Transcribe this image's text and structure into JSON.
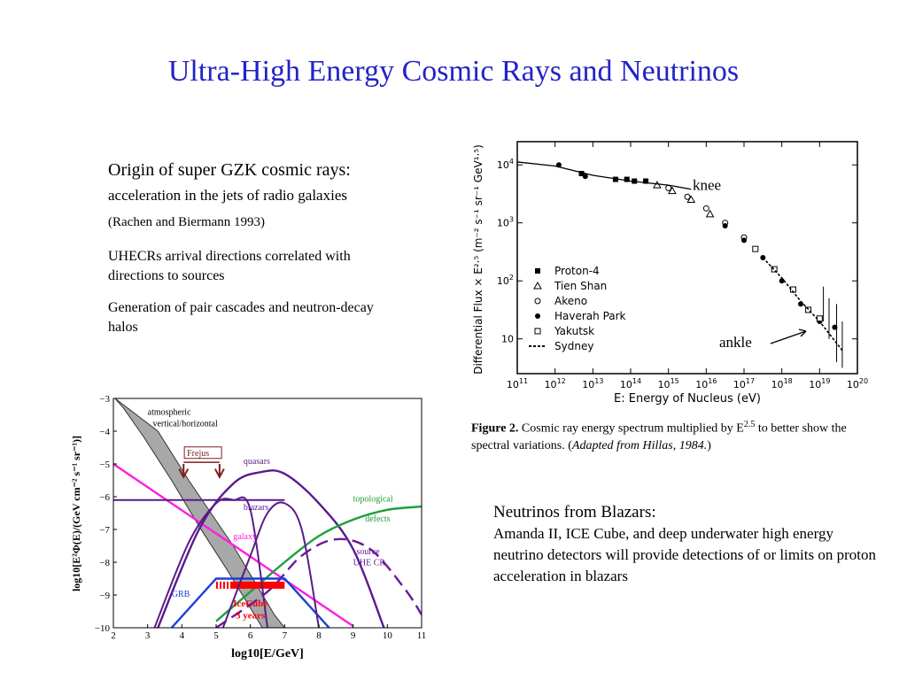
{
  "slide": {
    "title": "Ultra-High Energy Cosmic Rays and Neutrinos",
    "left_text": {
      "p1_lead": "Origin of super GZK cosmic rays:",
      "p1_mid": "acceleration in the jets of radio galaxies",
      "p1_cite": "(Rachen and Biermann 1993)",
      "p2": "UHECRs arrival directions correlated with directions to sources",
      "p3": "Generation of pair cascades and neutron-decay halos"
    },
    "right_text": {
      "heading": "Neutrinos from Blazars:",
      "body": "Amanda II, ICE Cube, and deep underwater high energy neutrino detectors  will provide detections of or limits on proton acceleration in blazars"
    },
    "caption": {
      "label": "Figure 2.",
      "text": "Cosmic ray energy spectrum multiplied by E",
      "exp": "2.5",
      "text2": "to better show the spectral variations. (",
      "cite": "Adapted from Hillas, 1984.",
      "close": ")"
    }
  },
  "chart_data": [
    {
      "type": "scatter",
      "xlabel": "E: Energy of Nucleus (eV)",
      "ylabel": "Differential Flux × E²·⁵ (m⁻² s⁻¹ sr⁻¹ GeV¹·⁵)",
      "xscale": "log",
      "yscale": "log",
      "xlim_log10": [
        11,
        20
      ],
      "ylim_log10": [
        0.4,
        4.4
      ],
      "x_ticks": [
        "10^11",
        "10^12",
        "10^13",
        "10^14",
        "10^15",
        "10^16",
        "10^17",
        "10^18",
        "10^19",
        "10^20"
      ],
      "y_ticks": [
        "10",
        "10^2",
        "10^3",
        "10^4"
      ],
      "annotations": [
        {
          "text": "knee",
          "x_log10": 15.5,
          "y_log10": 3.6
        },
        {
          "text": "ankle",
          "x_log10": 18.9,
          "y_log10": 0.95
        }
      ],
      "legend": [
        "Proton-4",
        "Tien Shan",
        "Akeno",
        "Haverah Park",
        "Yakutsk",
        "Sydney"
      ],
      "legend_position": "left",
      "series": [
        {
          "name": "Proton-4",
          "marker": "filled-square",
          "x_log10": [
            12.7,
            13.6,
            13.9,
            14.1,
            14.4
          ],
          "y_log10": [
            3.85,
            3.75,
            3.75,
            3.72,
            3.72
          ]
        },
        {
          "name": "Tien Shan",
          "marker": "open-triangle",
          "x_log10": [
            14.7,
            15.1,
            15.6,
            16.1
          ],
          "y_log10": [
            3.65,
            3.55,
            3.4,
            3.15
          ]
        },
        {
          "name": "Akeno",
          "marker": "open-circle",
          "x_log10": [
            15.0,
            15.5,
            16.0,
            16.5,
            17.0
          ],
          "y_log10": [
            3.6,
            3.45,
            3.25,
            3.0,
            2.75
          ]
        },
        {
          "name": "Haverah Park",
          "marker": "filled-circle",
          "x_log10": [
            12.1,
            12.8,
            16.5,
            17.0,
            17.5,
            18.0,
            18.5,
            19.0,
            19.4
          ],
          "y_log10": [
            4.0,
            3.8,
            2.95,
            2.7,
            2.4,
            2.0,
            1.6,
            1.3,
            1.2
          ]
        },
        {
          "name": "Yakutsk",
          "marker": "open-square",
          "x_log10": [
            17.3,
            17.8,
            18.3,
            18.7,
            19.0
          ],
          "y_log10": [
            2.55,
            2.2,
            1.85,
            1.5,
            1.35
          ]
        },
        {
          "name": "Sydney",
          "marker": "dashed-line",
          "x_log10": [
            17.5,
            18.0,
            18.5,
            19.0,
            19.6
          ],
          "y_log10": [
            2.4,
            2.05,
            1.65,
            1.3,
            0.8
          ]
        }
      ]
    },
    {
      "type": "line",
      "xlabel": "log10[E/GeV]",
      "ylabel": "log10[E²Φ(E)/(GeV cm⁻² s⁻¹ sr⁻¹)]",
      "xlim": [
        2,
        11
      ],
      "ylim": [
        -10,
        -3
      ],
      "x_ticks": [
        "2",
        "3",
        "4",
        "5",
        "6",
        "7",
        "8",
        "9",
        "10",
        "11"
      ],
      "y_ticks": [
        "−3",
        "−4",
        "−5",
        "−6",
        "−7",
        "−8",
        "−9",
        "−10"
      ],
      "labels": {
        "atmo": "atmospheric",
        "atmo2": "vertical/horizontal",
        "frejus": "Frejus",
        "quasars": "quasars",
        "blazars": "blazars",
        "galaxy": "galaxy",
        "topo": "topological",
        "topo2": "defects",
        "source": "source",
        "source2": "UHE CR",
        "grb": "GRB",
        "icecube": "IceCube",
        "icecube2": "3 years"
      },
      "series": [
        {
          "name": "galaxy",
          "color": "#ff1fe0",
          "x": [
            2,
            9
          ],
          "y": [
            -5.0,
            -9.95
          ]
        },
        {
          "name": "blazars",
          "color": "#5a1a8c",
          "x": [
            2,
            5.5,
            6.5,
            7.0
          ],
          "y": [
            -6.1,
            -6.1,
            -6.1,
            -6.1
          ]
        },
        {
          "name": "quasars",
          "color": "#5a1a8c",
          "x": [
            3.3,
            4.5,
            5.5,
            6.3,
            7.0,
            8.0,
            9.0,
            9.9
          ],
          "y": [
            -10,
            -7.0,
            -5.6,
            -5.25,
            -5.3,
            -6.2,
            -7.6,
            -10
          ]
        },
        {
          "name": "topological defects",
          "color": "#1f9e3c",
          "x": [
            5.0,
            6.0,
            7.0,
            8.0,
            9.0,
            10.0,
            11.0
          ],
          "y": [
            -9.8,
            -8.9,
            -8.0,
            -7.2,
            -6.7,
            -6.4,
            -6.3
          ]
        },
        {
          "name": "source UHE CR",
          "color": "#6a1a9a",
          "x": [
            5.0,
            6.5,
            7.5,
            8.5,
            9.5,
            10.5,
            11.0
          ],
          "y": [
            -10,
            -8.9,
            -7.8,
            -7.3,
            -7.6,
            -8.8,
            -9.6
          ]
        },
        {
          "name": "GRB",
          "color": "#1b3fd6",
          "x": [
            3.7,
            5.0,
            7.0,
            8.3
          ],
          "y": [
            -10,
            -8.5,
            -8.5,
            -10
          ]
        },
        {
          "name": "IceCube 3 years",
          "color": "#ff0000",
          "x": [
            5.0,
            7.0
          ],
          "y": [
            -8.7,
            -8.7
          ]
        }
      ]
    }
  ]
}
